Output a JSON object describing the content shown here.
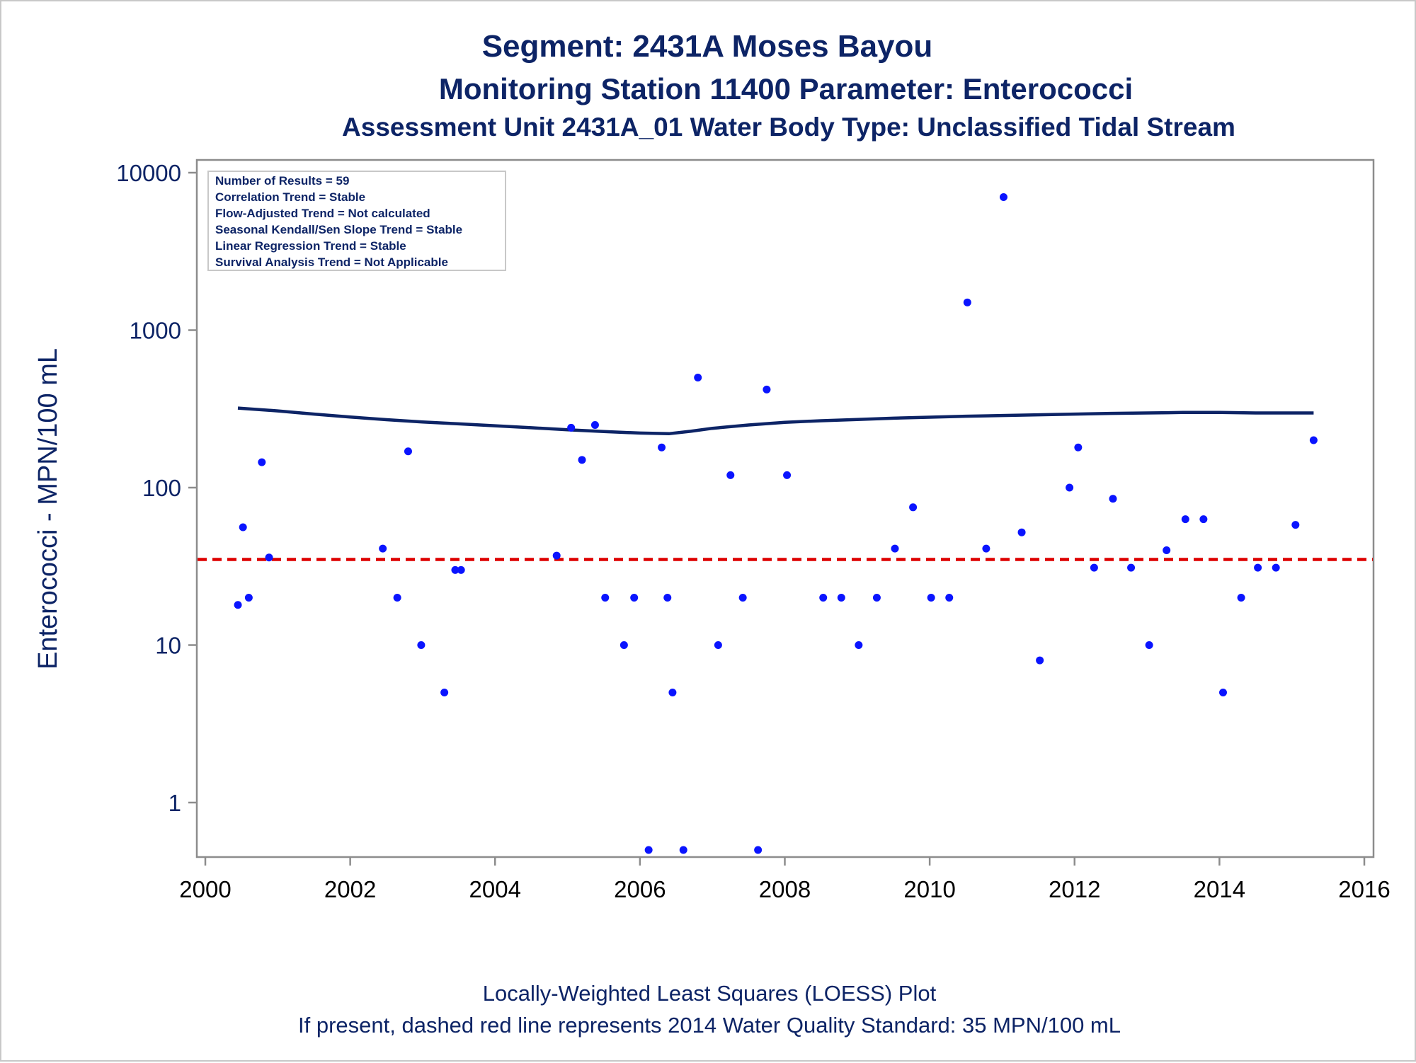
{
  "titles": {
    "line1": "Segment: 2431A  Moses Bayou",
    "line2": "Monitoring Station 11400 Parameter: Enterococci",
    "line3": "Assessment Unit 2431A_01   Water Body Type: Unclassified Tidal Stream"
  },
  "footer": {
    "line1": "Locally-Weighted Least Squares (LOESS) Plot",
    "line2": "If present, dashed red line represents 2014 Water Quality Standard: 35 MPN/100 mL"
  },
  "stats_box": [
    "Number of Results = 59",
    "Correlation Trend = Stable",
    "Flow-Adjusted Trend = Not calculated",
    "Seasonal Kendall/Sen Slope Trend = Stable",
    "Linear Regression Trend = Stable",
    "Survival Analysis Trend = Not Applicable"
  ],
  "colors": {
    "points": "#0a14ff",
    "loess": "#0d2466",
    "standard_line": "#dd0000",
    "axis": "#8c8c8c",
    "text": "#0d2466"
  },
  "chart_data": {
    "type": "scatter",
    "title": "Segment: 2431A  Moses Bayou",
    "ylabel": "Enterococci - MPN/100 mL",
    "xlabel": "",
    "yscale": "log",
    "xlim": [
      2000,
      2016
    ],
    "ylim": [
      0.45,
      10000
    ],
    "x_ticks": [
      "2000",
      "2002",
      "2004",
      "2006",
      "2008",
      "2010",
      "2012",
      "2014",
      "2016"
    ],
    "y_ticks": [
      "1",
      "10",
      "100",
      "1000",
      "10000"
    ],
    "grid": false,
    "legend": "none",
    "series": [
      {
        "type": "scatter",
        "x": [
          2000.45,
          2000.52,
          2000.6,
          2000.78,
          2000.88,
          2002.45,
          2002.65,
          2002.8,
          2002.98,
          2003.3,
          2003.45,
          2003.53,
          2004.85,
          2005.05,
          2005.2,
          2005.38,
          2005.52,
          2005.78,
          2005.92,
          2006.12,
          2006.3,
          2006.38,
          2006.45,
          2006.6,
          2006.8,
          2007.08,
          2007.25,
          2007.42,
          2007.63,
          2007.75,
          2008.03,
          2008.53,
          2008.78,
          2009.02,
          2009.27,
          2009.52,
          2009.77,
          2010.02,
          2010.27,
          2010.52,
          2010.78,
          2011.02,
          2011.27,
          2011.52,
          2011.93,
          2012.05,
          2012.27,
          2012.53,
          2012.78,
          2013.03,
          2013.27,
          2013.53,
          2013.78,
          2014.05,
          2014.3,
          2014.53,
          2014.78,
          2015.05,
          2015.3
        ],
        "y": [
          18,
          56,
          20,
          145,
          36,
          41,
          20,
          170,
          10,
          5,
          30,
          30,
          37,
          240,
          150,
          250,
          20,
          10,
          20,
          0.5,
          180,
          20,
          5,
          0.5,
          500,
          10,
          120,
          20,
          0.5,
          420,
          120,
          20,
          20,
          10,
          20,
          41,
          75,
          20,
          20,
          1500,
          41,
          7000,
          52,
          8,
          100,
          180,
          31,
          85,
          31,
          10,
          40,
          63,
          63,
          5,
          20,
          31,
          31,
          58,
          200
        ]
      },
      {
        "type": "line",
        "name": "LOESS",
        "x": [
          2000.45,
          2001.0,
          2001.5,
          2002.0,
          2002.5,
          2003.0,
          2003.5,
          2004.0,
          2004.5,
          2005.0,
          2005.5,
          2006.0,
          2006.4,
          2006.7,
          2007.0,
          2007.5,
          2008.0,
          2008.5,
          2009.0,
          2009.5,
          2010.0,
          2010.5,
          2011.0,
          2011.5,
          2012.0,
          2012.5,
          2013.0,
          2013.5,
          2014.0,
          2014.5,
          2015.3
        ],
        "y": [
          320,
          307,
          293,
          281,
          270,
          261,
          254,
          247,
          240,
          233,
          227,
          222,
          220,
          228,
          238,
          250,
          260,
          266,
          271,
          276,
          280,
          284,
          287,
          290,
          293,
          296,
          298,
          300,
          300,
          298,
          298
        ]
      },
      {
        "type": "hline",
        "name": "2014 Water Quality Standard",
        "y": 35
      }
    ]
  }
}
